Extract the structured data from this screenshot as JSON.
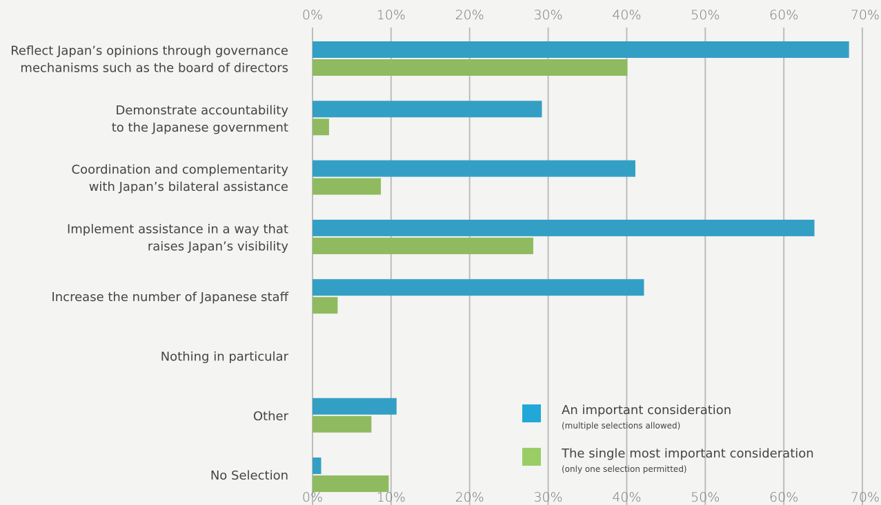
{
  "colors": {
    "background": "#f4f4f2",
    "series_important": "#349fc5",
    "series_most_important": "#8fba5f",
    "legend_important": "#21a8d8",
    "legend_most_important": "#9acd66",
    "gridline": "#bdbdbd"
  },
  "legend": {
    "items": [
      {
        "label": "An important consideration",
        "note": "(multiple selections allowed)",
        "color": "#21a8d8"
      },
      {
        "label": "The single most important consideration",
        "note": "(only one selection permitted)",
        "color": "#9acd66"
      }
    ]
  },
  "chart_data": {
    "type": "bar",
    "orientation": "horizontal",
    "title": "",
    "xlabel": "",
    "ylabel": "",
    "xlim": [
      0,
      70
    ],
    "x_ticks": [
      "0%",
      "10%",
      "20%",
      "30%",
      "40%",
      "50%",
      "60%",
      "70%"
    ],
    "x_tick_positions": [
      "top",
      "bottom"
    ],
    "grid": true,
    "legend_position": "bottom-right",
    "categories": [
      [
        "Reflect Japan’s opinions through governance",
        "mechanisms such as the board of directors"
      ],
      [
        "Demonstrate accountability",
        "to the Japanese government"
      ],
      [
        "Coordination and complementarity",
        "with Japan’s bilateral assistance"
      ],
      [
        "Implement assistance in a way that",
        "raises Japan’s visibility"
      ],
      [
        "Increase the number of Japanese staff"
      ],
      [
        "Nothing in particular"
      ],
      [
        "Other"
      ],
      [
        "No Selection"
      ]
    ],
    "series": [
      {
        "name": "An important consideration",
        "values": [
          68.3,
          29.2,
          41.1,
          63.9,
          42.2,
          0,
          10.7,
          1.1
        ]
      },
      {
        "name": "The single most important consideration",
        "values": [
          40.1,
          2.1,
          8.7,
          28.1,
          3.2,
          0,
          7.5,
          9.7
        ]
      }
    ]
  }
}
